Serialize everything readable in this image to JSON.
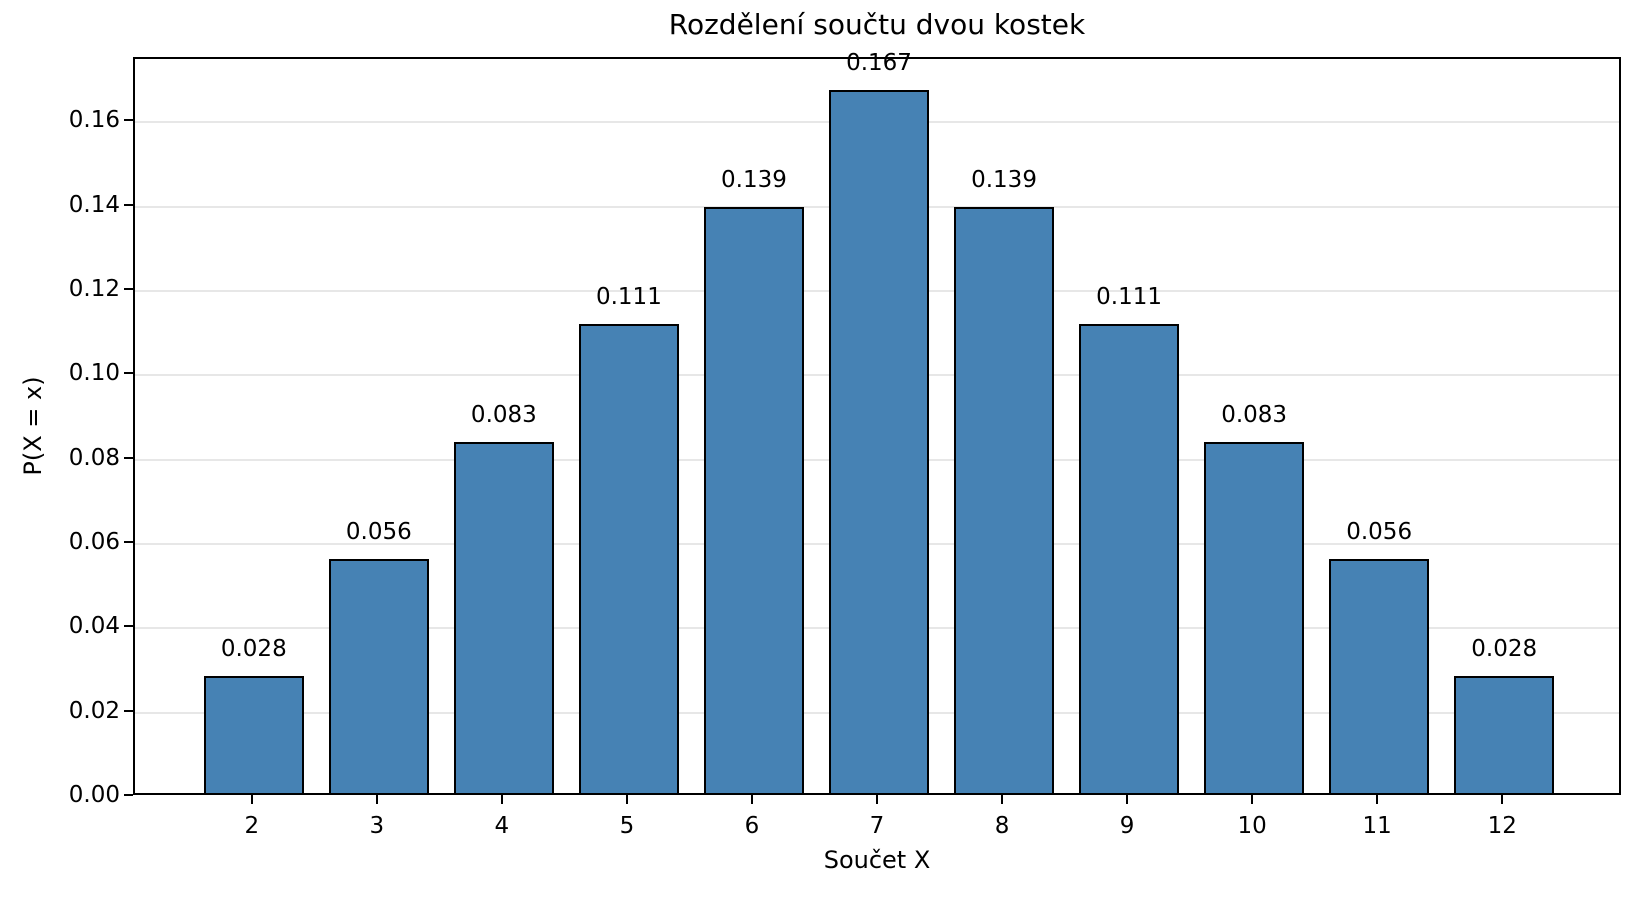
{
  "chart_data": {
    "type": "bar",
    "title": "Rozdělení součtu dvou kostek",
    "xlabel": "Součet X",
    "ylabel": "P(X = x)",
    "categories": [
      "2",
      "3",
      "4",
      "5",
      "6",
      "7",
      "8",
      "9",
      "10",
      "11",
      "12"
    ],
    "x": [
      2,
      3,
      4,
      5,
      6,
      7,
      8,
      9,
      10,
      11,
      12
    ],
    "values": [
      0.02778,
      0.05556,
      0.08333,
      0.11111,
      0.13889,
      0.16667,
      0.13889,
      0.11111,
      0.08333,
      0.05556,
      0.02778
    ],
    "bar_labels": [
      "0.028",
      "0.056",
      "0.083",
      "0.111",
      "0.139",
      "0.167",
      "0.139",
      "0.111",
      "0.083",
      "0.056",
      "0.028"
    ],
    "yticks": [
      0.0,
      0.02,
      0.04,
      0.06,
      0.08,
      0.1,
      0.12,
      0.14,
      0.16
    ],
    "ytick_labels": [
      "0.00",
      "0.02",
      "0.04",
      "0.06",
      "0.08",
      "0.10",
      "0.12",
      "0.14",
      "0.16"
    ],
    "ylim": [
      0,
      0.175
    ],
    "xlim": [
      1.05,
      12.95
    ],
    "bar_width": 0.8,
    "grid": true,
    "legend": "none",
    "colors": {
      "bar_fill": "#4682B4",
      "bar_edge": "#000000",
      "grid_line": "#e7e7e7",
      "axis_line": "#000000",
      "text": "#000000",
      "background": "#ffffff"
    }
  }
}
